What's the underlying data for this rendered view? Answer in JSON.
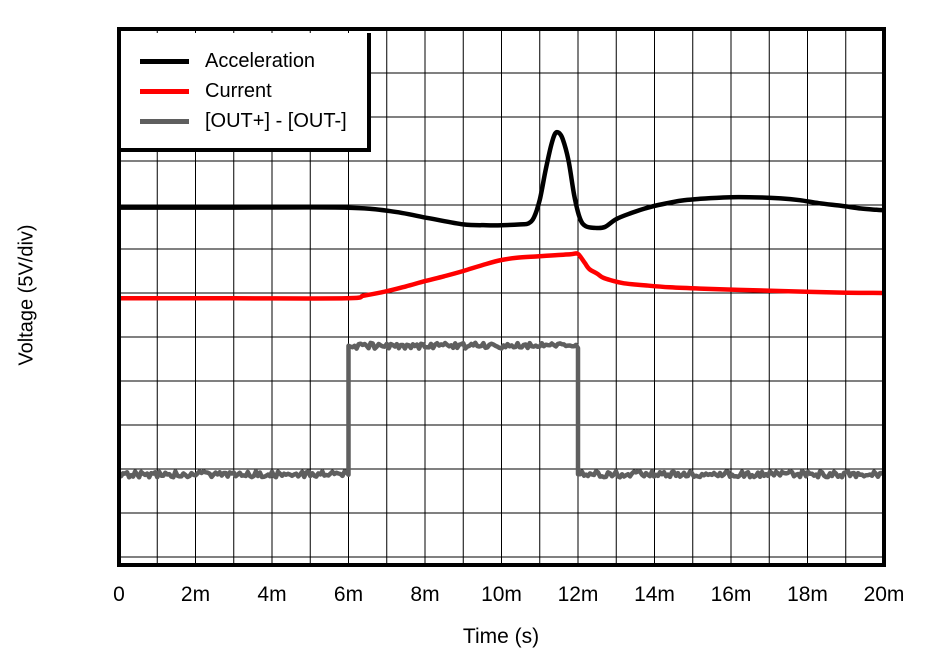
{
  "figure": {
    "xlabel": "Time (s)",
    "ylabel": "Voltage (5V/div)"
  },
  "legend": {
    "position": "top-left",
    "items": [
      {
        "label": "Acceleration",
        "color": "#000000"
      },
      {
        "label": "Current",
        "color": "#ff0000"
      },
      {
        "label": "[OUT+] - [OUT-]",
        "color": "#5f5f5f"
      }
    ]
  },
  "chart_data": {
    "type": "line",
    "title": "",
    "xlabel": "Time (s)",
    "ylabel": "Voltage (5V/div)",
    "x_unit": "ms",
    "xlim": [
      0,
      20
    ],
    "x_tick_values": [
      0,
      2,
      4,
      6,
      8,
      10,
      12,
      14,
      16,
      18,
      20
    ],
    "x_tick_labels": [
      "0",
      "2m",
      "4m",
      "6m",
      "8m",
      "10m",
      "12m",
      "14m",
      "16m",
      "18m",
      "20m"
    ],
    "volts_per_div": 5,
    "ylim_volts": [
      -0.9,
      60.0
    ],
    "grid": {
      "on": true,
      "x_step_ms": 1,
      "y_step_volts": 5,
      "color": "#000000"
    },
    "axis_color": "#000000",
    "background": "#ffffff",
    "series": [
      {
        "name": "[OUT+] - [OUT-]",
        "color": "#5f5f5f",
        "noise": true,
        "shape": "square-pulse",
        "points": [
          [
            0,
            9.4
          ],
          [
            6,
            9.4
          ],
          [
            6,
            24.0
          ],
          [
            12,
            24.0
          ],
          [
            12,
            9.4
          ],
          [
            20,
            9.4
          ]
        ]
      },
      {
        "name": "Current",
        "color": "#ff0000",
        "noise": false,
        "points": [
          [
            0,
            29.4
          ],
          [
            3,
            29.4
          ],
          [
            5.95,
            29.4
          ],
          [
            6.4,
            29.7
          ],
          [
            7.0,
            30.2
          ],
          [
            7.5,
            30.75
          ],
          [
            8.0,
            31.35
          ],
          [
            8.5,
            31.9
          ],
          [
            9.0,
            32.5
          ],
          [
            9.6,
            33.3
          ],
          [
            10.0,
            33.75
          ],
          [
            10.4,
            34.0
          ],
          [
            10.9,
            34.15
          ],
          [
            11.4,
            34.3
          ],
          [
            11.8,
            34.4
          ],
          [
            11.97,
            34.5
          ],
          [
            12.05,
            34.2
          ],
          [
            12.18,
            33.4
          ],
          [
            12.3,
            32.7
          ],
          [
            12.5,
            32.2
          ],
          [
            12.65,
            31.75
          ],
          [
            12.9,
            31.4
          ],
          [
            13.2,
            31.1
          ],
          [
            13.8,
            30.85
          ],
          [
            14.4,
            30.65
          ],
          [
            15.2,
            30.5
          ],
          [
            16.2,
            30.35
          ],
          [
            17.5,
            30.2
          ],
          [
            18.9,
            30.05
          ],
          [
            20,
            30.0
          ]
        ]
      },
      {
        "name": "Acceleration",
        "color": "#000000",
        "noise": false,
        "points": [
          [
            0,
            39.7
          ],
          [
            3,
            39.7
          ],
          [
            5.9,
            39.7
          ],
          [
            7.1,
            39.3
          ],
          [
            8.1,
            38.5
          ],
          [
            9.0,
            37.8
          ],
          [
            9.6,
            37.7
          ],
          [
            10.0,
            37.7
          ],
          [
            10.5,
            37.8
          ],
          [
            10.7,
            37.9
          ],
          [
            10.85,
            38.6
          ],
          [
            11.0,
            40.6
          ],
          [
            11.15,
            43.9
          ],
          [
            11.3,
            46.8
          ],
          [
            11.4,
            48.1
          ],
          [
            11.5,
            48.2
          ],
          [
            11.6,
            47.5
          ],
          [
            11.75,
            45.1
          ],
          [
            11.9,
            41.1
          ],
          [
            12.05,
            38.5
          ],
          [
            12.2,
            37.6
          ],
          [
            12.45,
            37.4
          ],
          [
            12.7,
            37.5
          ],
          [
            13.0,
            38.4
          ],
          [
            13.4,
            39.1
          ],
          [
            13.75,
            39.6
          ],
          [
            14.1,
            40.0
          ],
          [
            14.7,
            40.5
          ],
          [
            15.2,
            40.7
          ],
          [
            15.8,
            40.85
          ],
          [
            16.2,
            40.9
          ],
          [
            16.8,
            40.85
          ],
          [
            17.3,
            40.75
          ],
          [
            17.8,
            40.55
          ],
          [
            18.3,
            40.2
          ],
          [
            18.9,
            39.9
          ],
          [
            19.4,
            39.6
          ],
          [
            19.8,
            39.45
          ],
          [
            20,
            39.4
          ]
        ]
      }
    ]
  }
}
